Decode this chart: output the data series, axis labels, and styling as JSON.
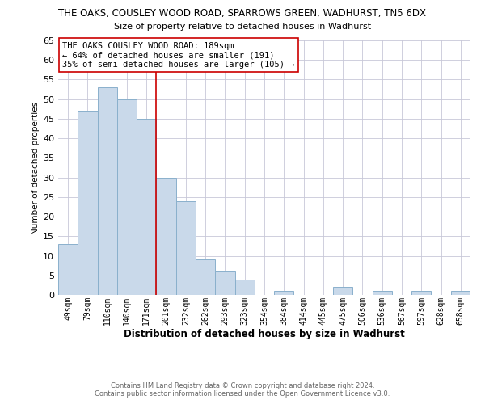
{
  "title": "THE OAKS, COUSLEY WOOD ROAD, SPARROWS GREEN, WADHURST, TN5 6DX",
  "subtitle": "Size of property relative to detached houses in Wadhurst",
  "xlabel": "Distribution of detached houses by size in Wadhurst",
  "ylabel": "Number of detached properties",
  "bar_labels": [
    "49sqm",
    "79sqm",
    "110sqm",
    "140sqm",
    "171sqm",
    "201sqm",
    "232sqm",
    "262sqm",
    "293sqm",
    "323sqm",
    "354sqm",
    "384sqm",
    "414sqm",
    "445sqm",
    "475sqm",
    "506sqm",
    "536sqm",
    "567sqm",
    "597sqm",
    "628sqm",
    "658sqm"
  ],
  "bar_values": [
    13,
    47,
    53,
    50,
    45,
    30,
    24,
    9,
    6,
    4,
    0,
    1,
    0,
    0,
    2,
    0,
    1,
    0,
    1,
    0,
    1
  ],
  "bar_color": "#c9d9ea",
  "bar_edge_color": "#8ab0cc",
  "property_line_x": 4.5,
  "property_line_color": "#cc0000",
  "ylim": [
    0,
    65
  ],
  "yticks": [
    0,
    5,
    10,
    15,
    20,
    25,
    30,
    35,
    40,
    45,
    50,
    55,
    60,
    65
  ],
  "annotation_title": "THE OAKS COUSLEY WOOD ROAD: 189sqm",
  "annotation_line1": "← 64% of detached houses are smaller (191)",
  "annotation_line2": "35% of semi-detached houses are larger (105) →",
  "footer_line1": "Contains HM Land Registry data © Crown copyright and database right 2024.",
  "footer_line2": "Contains public sector information licensed under the Open Government Licence v3.0.",
  "bg_color": "#ffffff",
  "grid_color": "#c8c8d8"
}
